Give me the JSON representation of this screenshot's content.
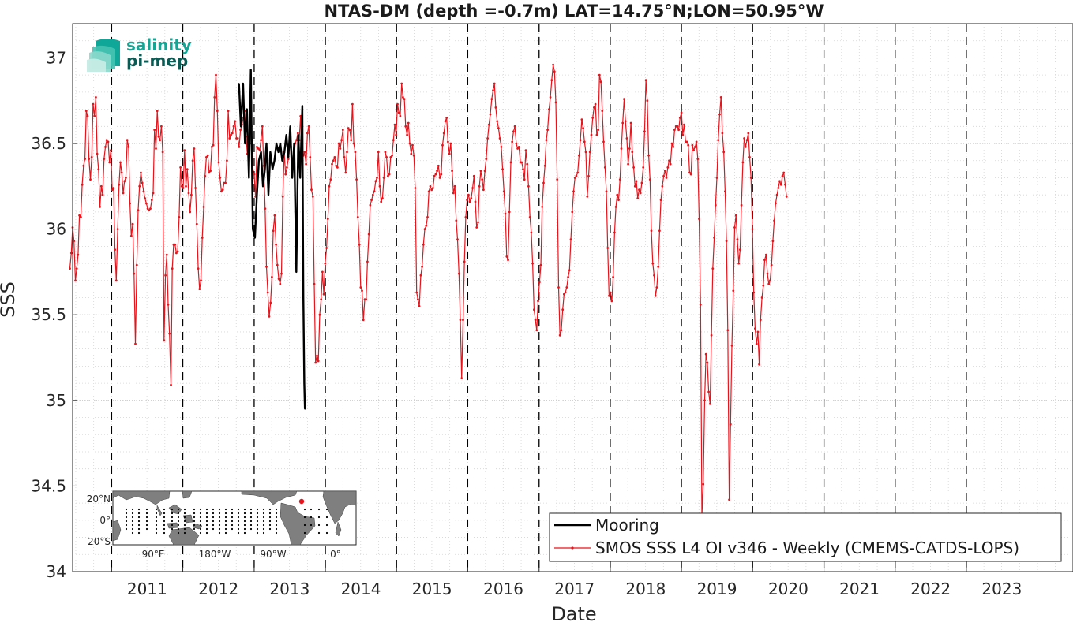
{
  "chart_data": {
    "type": "line",
    "title": "NTAS-DM (depth =-0.7m) LAT=14.75°N;LON=50.95°W",
    "xlabel": "Date",
    "ylabel": "SSS",
    "ylim": [
      34,
      37.2
    ],
    "xlim": [
      "2010-06-15",
      "2024-07-01"
    ],
    "yticks": [
      "34",
      "34.5",
      "35",
      "35.5",
      "36",
      "36.5",
      "37"
    ],
    "xticks": [
      "2011",
      "2012",
      "2013",
      "2014",
      "2015",
      "2016",
      "2017",
      "2018",
      "2019",
      "2020",
      "2021",
      "2022",
      "2023"
    ],
    "year_lines": [
      "2011",
      "2012",
      "2013",
      "2014",
      "2015",
      "2016",
      "2017",
      "2018",
      "2019",
      "2020",
      "2021",
      "2022",
      "2023"
    ],
    "grid": "minor dotted",
    "legend_position": "bottom-right",
    "series": [
      {
        "name": "Mooring",
        "color": "#000000",
        "points": [
          [
            "2012-10-15",
            36.85
          ],
          [
            "2012-10-25",
            36.6
          ],
          [
            "2012-11-05",
            36.85
          ],
          [
            "2012-11-15",
            36.5
          ],
          [
            "2012-11-25",
            36.7
          ],
          [
            "2012-12-05",
            36.3
          ],
          [
            "2012-12-15",
            36.93
          ],
          [
            "2012-12-25",
            36.0
          ],
          [
            "2013-01-05",
            35.95
          ],
          [
            "2013-01-15",
            36.2
          ],
          [
            "2013-01-25",
            36.4
          ],
          [
            "2013-02-05",
            36.45
          ],
          [
            "2013-02-15",
            36.25
          ],
          [
            "2013-02-25",
            36.35
          ],
          [
            "2013-03-05",
            36.5
          ],
          [
            "2013-03-15",
            36.2
          ],
          [
            "2013-03-25",
            36.45
          ],
          [
            "2013-04-05",
            36.35
          ],
          [
            "2013-04-15",
            36.4
          ],
          [
            "2013-04-25",
            36.5
          ],
          [
            "2013-05-05",
            36.45
          ],
          [
            "2013-05-15",
            36.5
          ],
          [
            "2013-05-25",
            36.4
          ],
          [
            "2013-06-05",
            36.45
          ],
          [
            "2013-06-15",
            36.55
          ],
          [
            "2013-06-25",
            36.42
          ],
          [
            "2013-07-05",
            36.6
          ],
          [
            "2013-07-15",
            36.3
          ],
          [
            "2013-07-25",
            36.5
          ],
          [
            "2013-08-05",
            35.75
          ],
          [
            "2013-08-15",
            36.55
          ],
          [
            "2013-08-25",
            36.3
          ],
          [
            "2013-09-05",
            36.72
          ],
          [
            "2013-09-10",
            35.6
          ],
          [
            "2013-09-15",
            35.1
          ],
          [
            "2013-09-18",
            34.95
          ]
        ]
      },
      {
        "name": "SMOS SSS L4 OI v346 - Weekly (CMEMS-CATDS-LOPS)",
        "color": "#e8131b",
        "start_date": "2010-06-01",
        "step_days": 7,
        "values": [
          35.77,
          35.86,
          36.01,
          35.93,
          35.7,
          35.77,
          35.85,
          36.08,
          36.07,
          36.26,
          36.37,
          36.41,
          36.69,
          36.66,
          36.41,
          36.29,
          36.42,
          36.73,
          36.66,
          36.77,
          36.44,
          36.35,
          36.13,
          36.25,
          36.2,
          36.41,
          36.48,
          36.52,
          36.51,
          36.39,
          36.46,
          36.23,
          36.24,
          35.88,
          35.7,
          36.0,
          36.26,
          36.39,
          36.33,
          36.21,
          36.28,
          36.3,
          36.52,
          36.48,
          36.15,
          35.96,
          36.03,
          35.74,
          35.33,
          35.79,
          36.11,
          36.25,
          36.33,
          36.27,
          36.22,
          36.18,
          36.15,
          36.12,
          36.11,
          36.12,
          36.17,
          36.21,
          36.58,
          36.47,
          36.69,
          36.54,
          36.52,
          36.6,
          36.45,
          35.35,
          35.73,
          35.85,
          35.56,
          35.39,
          35.09,
          35.77,
          35.91,
          35.91,
          35.86,
          35.87,
          36.07,
          36.36,
          36.25,
          36.24,
          36.46,
          36.25,
          36.35,
          36.21,
          36.1,
          36.2,
          36.4,
          36.47,
          36.24,
          36.03,
          35.77,
          35.65,
          35.7,
          35.95,
          36.13,
          36.31,
          36.42,
          36.43,
          36.33,
          36.34,
          36.48,
          36.49,
          36.77,
          36.9,
          36.69,
          36.39,
          36.3,
          36.22,
          36.23,
          36.27,
          36.27,
          36.4,
          36.69,
          36.53,
          36.55,
          36.56,
          36.6,
          36.63,
          36.53,
          36.53,
          36.48,
          36.58,
          36.61,
          36.65,
          36.69,
          36.54,
          36.44,
          36.5,
          36.5,
          36.6,
          36.34,
          36.32,
          36.19,
          36.48,
          36.47,
          36.46,
          36.52,
          36.6,
          36.37,
          36.12,
          35.78,
          35.63,
          35.49,
          35.57,
          35.72,
          35.99,
          36.08,
          35.91,
          35.79,
          35.71,
          35.68,
          35.74,
          36.19,
          36.45,
          36.32,
          36.36,
          36.41,
          36.48,
          36.48,
          36.37,
          36.36,
          36.5,
          36.52,
          36.56,
          36.52,
          36.66,
          36.48,
          36.43,
          36.45,
          36.38,
          36.56,
          36.6,
          36.42,
          36.23,
          36.19,
          35.68,
          35.22,
          35.26,
          35.23,
          35.5,
          35.59,
          35.75,
          35.62,
          35.8,
          35.89,
          36.06,
          36.25,
          36.29,
          36.38,
          36.4,
          36.42,
          36.37,
          36.36,
          36.5,
          36.47,
          36.52,
          36.58,
          36.42,
          36.33,
          36.45,
          36.59,
          36.58,
          36.52,
          36.73,
          36.5,
          36.45,
          36.29,
          36.07,
          35.91,
          35.66,
          35.64,
          35.47,
          35.59,
          35.59,
          35.81,
          35.97,
          36.14,
          36.17,
          36.2,
          36.22,
          36.28,
          36.3,
          36.45,
          36.25,
          36.16,
          36.18,
          36.3,
          36.45,
          36.42,
          36.31,
          36.32,
          36.42,
          36.43,
          36.52,
          36.61,
          36.55,
          36.73,
          36.68,
          36.66,
          36.85,
          36.77,
          36.76,
          36.6,
          36.55,
          36.62,
          36.5,
          36.44,
          36.49,
          36.43,
          36.24,
          35.63,
          35.59,
          35.55,
          35.73,
          35.78,
          35.91,
          36.0,
          36.02,
          36.07,
          36.22,
          36.25,
          36.23,
          36.24,
          36.31,
          36.32,
          36.34,
          36.37,
          36.3,
          36.32,
          36.49,
          36.56,
          36.63,
          36.65,
          36.51,
          36.44,
          36.5,
          36.34,
          36.21,
          36.25,
          36.05,
          35.94,
          35.74,
          35.47,
          35.13,
          35.47,
          35.81,
          36.07,
          36.17,
          36.2,
          36.16,
          36.18,
          36.24,
          36.31,
          36.16,
          36.01,
          36.04,
          36.25,
          36.34,
          36.29,
          36.23,
          36.34,
          36.41,
          36.53,
          36.61,
          36.67,
          36.76,
          36.81,
          36.85,
          36.71,
          36.63,
          36.59,
          36.53,
          36.48,
          36.35,
          36.22,
          36.09,
          35.84,
          35.82,
          36.1,
          36.39,
          36.51,
          36.57,
          36.6,
          36.5,
          36.47,
          36.48,
          36.39,
          36.39,
          36.35,
          36.29,
          36.46,
          36.38,
          36.25,
          36.07,
          35.98,
          35.8,
          35.53,
          35.47,
          35.41,
          35.58,
          35.69,
          35.79,
          36.13,
          36.27,
          36.37,
          36.52,
          36.58,
          36.7,
          36.77,
          36.87,
          36.96,
          36.92,
          36.74,
          36.29,
          35.66,
          35.38,
          35.41,
          35.53,
          35.62,
          35.63,
          35.66,
          35.72,
          35.76,
          35.94,
          36.1,
          36.22,
          36.3,
          36.31,
          36.33,
          36.43,
          36.52,
          36.64,
          36.59,
          36.51,
          36.45,
          36.19,
          36.31,
          36.45,
          36.55,
          36.65,
          36.71,
          36.73,
          36.55,
          36.58,
          36.9,
          36.86,
          36.69,
          36.51,
          36.36,
          36.22,
          35.89,
          35.61,
          35.63,
          35.58,
          35.72,
          35.98,
          36.13,
          36.2,
          36.17,
          36.29,
          36.47,
          36.62,
          36.76,
          36.63,
          36.53,
          36.38,
          36.47,
          36.62,
          36.45,
          36.36,
          36.25,
          36.28,
          36.18,
          36.23,
          36.21,
          36.27,
          36.36,
          36.57,
          36.87,
          36.75,
          36.43,
          36.29,
          35.99,
          35.8,
          35.73,
          35.61,
          35.66,
          35.78,
          35.99,
          36.17,
          36.25,
          36.31,
          36.34,
          36.3,
          36.36,
          36.4,
          36.38,
          36.5,
          36.48,
          36.58,
          36.6,
          36.6,
          36.58,
          36.65,
          36.68,
          36.55,
          36.61,
          36.51,
          36.51,
          36.49,
          36.33,
          36.32,
          36.49,
          36.46,
          36.48,
          36.51,
          36.41,
          36.06,
          35.56,
          34.33,
          34.51,
          35.0,
          35.27,
          35.22,
          35.05,
          34.98,
          35.38,
          35.77,
          35.95,
          36.14,
          36.3,
          36.52,
          36.67,
          36.77,
          36.56,
          36.45,
          36.22,
          35.93,
          35.41,
          34.42,
          34.86,
          35.32,
          35.64,
          36.01,
          36.08,
          35.94,
          35.8,
          35.88,
          36.14,
          36.39,
          36.53,
          36.48,
          36.52,
          36.56,
          36.42,
          36.3,
          36.0,
          35.63,
          35.42,
          35.33,
          35.4,
          35.21,
          35.47,
          35.6,
          35.67,
          35.82,
          35.85,
          35.74,
          35.68,
          35.7,
          35.79,
          35.93,
          36.05,
          36.15,
          36.2,
          36.24,
          36.28,
          36.26,
          36.31,
          36.33,
          36.26,
          36.19
        ]
      }
    ]
  },
  "logo": {
    "line1": "salinity",
    "line2": "pi-mep"
  },
  "inset_map": {
    "lat_labels": [
      "20°N",
      "0°",
      "20°S"
    ],
    "lon_labels": [
      "90°E",
      "180°W",
      "90°W",
      "0°"
    ],
    "marker_color": "#e8131b"
  }
}
